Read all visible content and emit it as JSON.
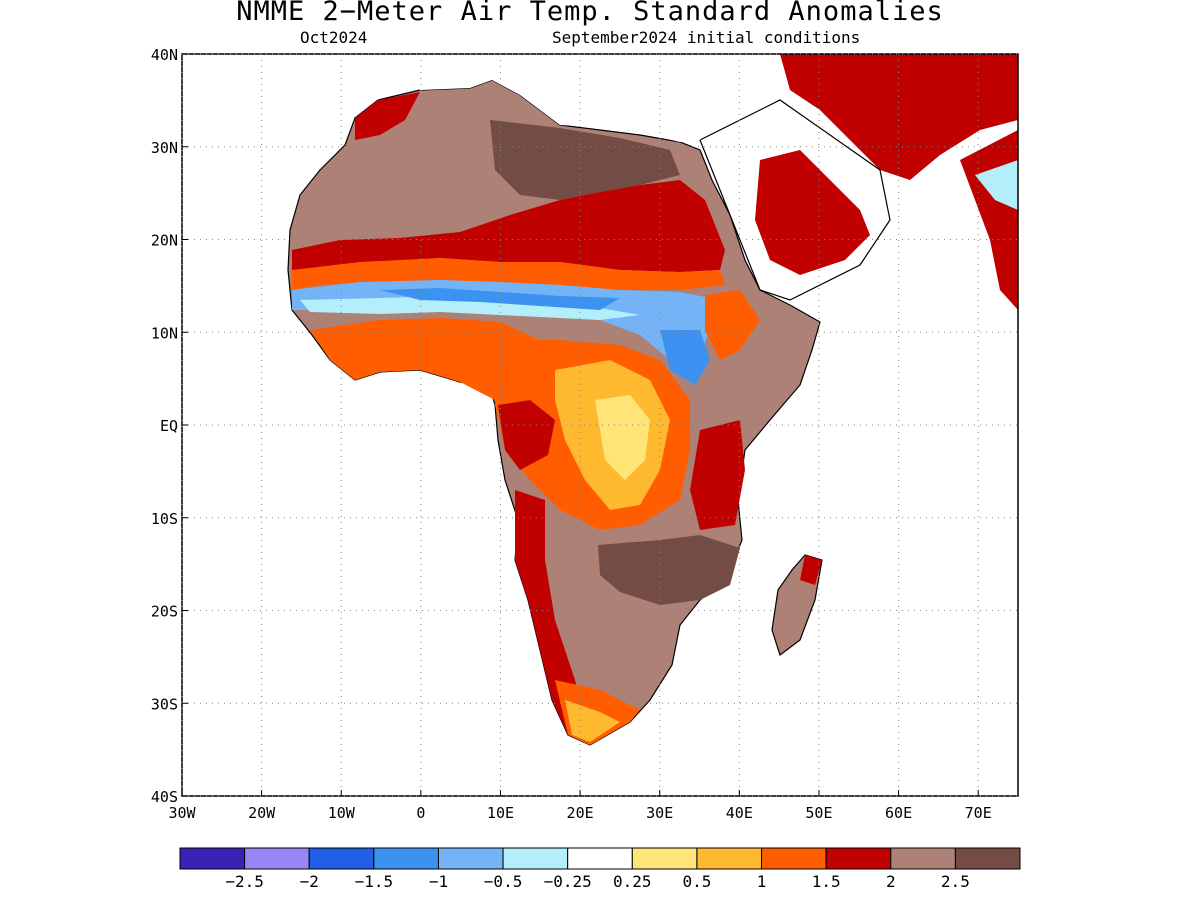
{
  "title": "NMME 2−Meter Air Temp. Standard Anomalies",
  "subtitle_left": "Oct2024",
  "subtitle_right": "September2024 initial conditions",
  "map": {
    "lon_range": [
      -30,
      75
    ],
    "lat_range": [
      -40,
      40
    ],
    "grid": true,
    "x_ticks": [
      "30W",
      "20W",
      "10W",
      "0",
      "10E",
      "20E",
      "30E",
      "40E",
      "50E",
      "60E",
      "70E"
    ],
    "y_ticks": [
      "40N",
      "30N",
      "20N",
      "10N",
      "EQ",
      "10S",
      "20S",
      "30S",
      "40S"
    ],
    "ocean_color": "#ffffff",
    "land_outline_color": "#000000"
  },
  "legend": {
    "colors": [
      "#3b22b4",
      "#9986f4",
      "#2160e6",
      "#3c92f0",
      "#74b4f6",
      "#b4eefa",
      "#ffffff",
      "#ffe478",
      "#ffb92e",
      "#ff5d00",
      "#c10000",
      "#ae8177",
      "#734c45"
    ],
    "labels": [
      "−2.5",
      "−2",
      "−1.5",
      "−1",
      "−0.5",
      "−0.25",
      "0.25",
      "0.5",
      "1",
      "1.5",
      "2",
      "2.5"
    ]
  }
}
